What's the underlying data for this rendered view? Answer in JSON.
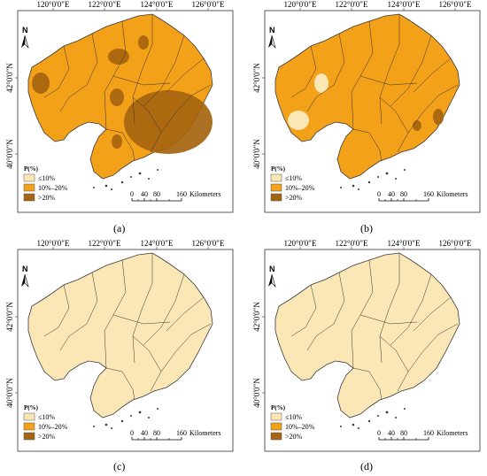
{
  "top_axis_labels": [
    "120°0'0\"E",
    "122°0'0\"E",
    "124°0'0\"E",
    "126°0'0\"E"
  ],
  "side_axis_labels": [
    "42°0'0\"N",
    "40°0'0\"N"
  ],
  "north_label": "N",
  "legend": {
    "title": "P(%)",
    "items": [
      {
        "label": "≤10%",
        "color": "#fbe7b5"
      },
      {
        "label": "10%–20%",
        "color": "#f4a11a"
      },
      {
        "label": ">20%",
        "color": "#a5640f"
      }
    ]
  },
  "scale_bar": {
    "ticks": [
      "0",
      "40",
      "80",
      "160"
    ],
    "unit": "Kilometers"
  },
  "colors": {
    "light": "#fbe7b5",
    "medium": "#f4a11a",
    "dark": "#a5640f",
    "border": "#3a3a3a"
  },
  "panels": [
    {
      "caption": "(a)",
      "base_class": "10%–20%",
      "patches": [
        ">20%"
      ]
    },
    {
      "caption": "(b)",
      "base_class": "10%–20%",
      "patches": [
        "≤10%",
        ">20%"
      ]
    },
    {
      "caption": "(c)",
      "base_class": "≤10%",
      "patches": []
    },
    {
      "caption": "(d)",
      "base_class": "≤10%",
      "patches": []
    }
  ]
}
